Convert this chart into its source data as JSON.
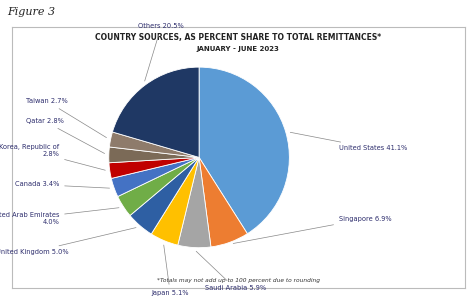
{
  "title": "COUNTRY SOURCES, AS PERCENT SHARE TO TOTAL REMITTANCES*",
  "subtitle": "JANUARY - JUNE 2023",
  "footnote": "*Totals may not add up to 100 percent due to rounding",
  "figure_label": "Figure 3",
  "labels": [
    "United States",
    "Singapore",
    "Saudi Arabia",
    "Japan",
    "United Kingdom",
    "United Arab Emirates",
    "Canada",
    "Korea, Republic of",
    "Qatar",
    "Taiwan",
    "Others"
  ],
  "values": [
    41.1,
    6.9,
    5.9,
    5.1,
    5.0,
    4.0,
    3.4,
    2.8,
    2.8,
    2.7,
    20.5
  ],
  "colors": [
    "#5B9BD5",
    "#ED7D31",
    "#A5A5A5",
    "#FFC000",
    "#2E5FA3",
    "#70AD47",
    "#4472C4",
    "#C00000",
    "#7B6A57",
    "#8E7B6B",
    "#1F3864"
  ],
  "bg_color": "#ffffff",
  "border_color": "#cccccc",
  "title_fontsize": 5.5,
  "subtitle_fontsize": 5.0,
  "label_fontsize": 4.8,
  "footnote_fontsize": 4.2
}
